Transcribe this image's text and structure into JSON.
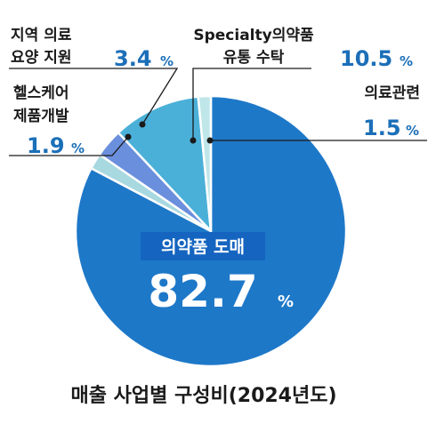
{
  "chart_data": {
    "type": "pie",
    "caption": "매출 사업별 구성비(2024년도)",
    "center_label": "의약품 도매",
    "slices": [
      {
        "name": "의약품 도매",
        "value": 82.7,
        "color": "#1e78c8"
      },
      {
        "name": "헬스케어 제품개발",
        "label_lines": [
          "헬스케어",
          "제품개발"
        ],
        "value": 1.9,
        "color": "#a8d8e0"
      },
      {
        "name": "지역 의료 요양 지원",
        "label_lines": [
          "지역 의료",
          "요양 지원"
        ],
        "value": 3.4,
        "color": "#6a8fdc"
      },
      {
        "name": "Specialty의약품 유통 수탁",
        "label_lines": [
          "Specialty의약품",
          "유통 수탁"
        ],
        "value": 10.5,
        "color": "#4bb0d8"
      },
      {
        "name": "의료관련",
        "label_lines": [
          "의료관련"
        ],
        "value": 1.5,
        "color": "#bfe6e8"
      }
    ],
    "value_format": {
      "main": [
        "82.7",
        "%"
      ],
      "small": [
        [
          "1.9",
          "%"
        ],
        [
          "3.4",
          "%"
        ],
        [
          "10.5",
          "%"
        ],
        [
          "1.5",
          "%"
        ]
      ]
    }
  }
}
